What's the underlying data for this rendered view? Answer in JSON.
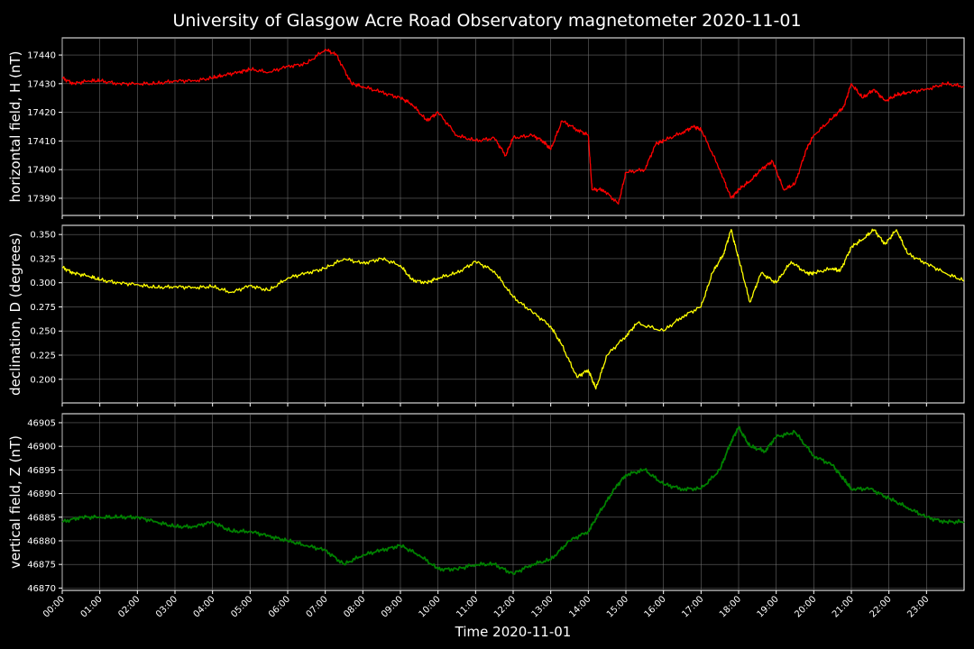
{
  "title": "University of Glasgow Acre Road Observatory magnetometer 2020-11-01",
  "chart_data": [
    {
      "type": "line",
      "ylabel": "horizontal field, H (nT)",
      "color": "#ff0000",
      "ylim": [
        17384,
        17446
      ],
      "yticks": [
        17390,
        17400,
        17410,
        17420,
        17430,
        17440
      ],
      "x": [
        0,
        0.3,
        0.7,
        1.0,
        1.5,
        2.0,
        2.5,
        3.0,
        3.5,
        4.0,
        4.3,
        4.7,
        5.0,
        5.5,
        6.0,
        6.5,
        7.0,
        7.3,
        7.7,
        8.0,
        8.5,
        9.0,
        9.3,
        9.7,
        10.0,
        10.5,
        11.0,
        11.5,
        11.8,
        12.0,
        12.5,
        12.8,
        13.0,
        13.3,
        13.7,
        14.0,
        14.1,
        14.4,
        14.8,
        15.0,
        15.5,
        15.8,
        16.0,
        16.5,
        16.8,
        17.0,
        17.5,
        17.8,
        18.0,
        18.3,
        18.6,
        18.9,
        19.2,
        19.5,
        19.8,
        20.0,
        20.5,
        20.8,
        21.0,
        21.3,
        21.6,
        21.9,
        22.2,
        22.5,
        23.0,
        23.5,
        24.0
      ],
      "y": [
        17432,
        17430,
        17431,
        17431,
        17430,
        17430,
        17430,
        17431,
        17431,
        17432,
        17433,
        17434,
        17435,
        17434,
        17436,
        17437,
        17442,
        17440,
        17430,
        17429,
        17427,
        17425,
        17423,
        17417,
        17420,
        17412,
        17410,
        17411,
        17405,
        17411,
        17412,
        17410,
        17407,
        17417,
        17414,
        17412,
        17393,
        17393,
        17388,
        17399,
        17400,
        17409,
        17410,
        17413,
        17415,
        17414,
        17400,
        17390,
        17393,
        17396,
        17400,
        17403,
        17393,
        17395,
        17407,
        17412,
        17418,
        17422,
        17430,
        17425,
        17428,
        17424,
        17426,
        17427,
        17428,
        17430,
        17429
      ]
    },
    {
      "type": "line",
      "ylabel": "declination, D (degrees)",
      "color": "#ffff00",
      "ylim": [
        0.1755,
        0.3595
      ],
      "yticks": [
        0.2,
        0.225,
        0.25,
        0.275,
        0.3,
        0.325,
        0.35
      ],
      "x": [
        0,
        0.3,
        0.7,
        1.0,
        1.5,
        2.0,
        2.5,
        3.0,
        3.5,
        4.0,
        4.5,
        5.0,
        5.5,
        6.0,
        6.5,
        7.0,
        7.5,
        8.0,
        8.5,
        9.0,
        9.3,
        9.7,
        10.0,
        10.5,
        11.0,
        11.5,
        12.0,
        12.5,
        13.0,
        13.3,
        13.7,
        14.0,
        14.2,
        14.5,
        15.0,
        15.3,
        16.0,
        16.5,
        17.0,
        17.3,
        17.6,
        17.8,
        18.0,
        18.3,
        18.6,
        19.0,
        19.4,
        19.8,
        20.0,
        20.5,
        20.7,
        21.0,
        21.3,
        21.6,
        21.9,
        22.2,
        22.5,
        23.0,
        23.5,
        24.0
      ],
      "y": [
        0.316,
        0.31,
        0.307,
        0.303,
        0.3,
        0.298,
        0.295,
        0.296,
        0.295,
        0.296,
        0.29,
        0.297,
        0.292,
        0.305,
        0.31,
        0.315,
        0.325,
        0.32,
        0.325,
        0.318,
        0.303,
        0.3,
        0.305,
        0.31,
        0.322,
        0.312,
        0.285,
        0.27,
        0.255,
        0.235,
        0.202,
        0.21,
        0.19,
        0.225,
        0.245,
        0.258,
        0.25,
        0.265,
        0.275,
        0.31,
        0.33,
        0.355,
        0.325,
        0.28,
        0.31,
        0.3,
        0.322,
        0.31,
        0.31,
        0.315,
        0.312,
        0.337,
        0.345,
        0.355,
        0.34,
        0.355,
        0.33,
        0.32,
        0.31,
        0.302
      ]
    },
    {
      "type": "line",
      "ylabel": "vertical field, Z (nT)",
      "color": "#008000",
      "ylim": [
        46869.5,
        46906.9
      ],
      "yticks": [
        46870,
        46875,
        46880,
        46885,
        46890,
        46895,
        46900,
        46905
      ],
      "x": [
        0,
        0.5,
        1.0,
        1.5,
        2.0,
        2.5,
        3.0,
        3.5,
        4.0,
        4.5,
        5.0,
        5.5,
        6.0,
        6.5,
        7.0,
        7.5,
        8.0,
        8.5,
        9.0,
        9.5,
        10.0,
        10.5,
        11.0,
        11.5,
        12.0,
        12.5,
        13.0,
        13.5,
        14.0,
        14.3,
        14.7,
        15.0,
        15.5,
        16.0,
        16.5,
        17.0,
        17.5,
        17.8,
        18.0,
        18.3,
        18.7,
        19.0,
        19.5,
        20.0,
        20.5,
        20.8,
        21.0,
        21.5,
        22.0,
        22.5,
        23.0,
        23.5,
        24.0
      ],
      "y": [
        46884,
        46885,
        46885,
        46885,
        46885,
        46884,
        46883,
        46883,
        46884,
        46882,
        46882,
        46881,
        46880,
        46879,
        46878,
        46875,
        46877,
        46878,
        46879,
        46877,
        46874,
        46874,
        46875,
        46875,
        46873,
        46875,
        46876,
        46880,
        46882,
        46886,
        46891,
        46894,
        46895,
        46892,
        46891,
        46891,
        46895,
        46901,
        46904,
        46900,
        46899,
        46902,
        46903,
        46898,
        46896,
        46893,
        46891,
        46891,
        46889,
        46887,
        46885,
        46884,
        46884
      ]
    }
  ],
  "xaxis": {
    "label": "Time 2020-11-01",
    "xlim": [
      0,
      24
    ],
    "ticks": [
      "00:00",
      "01:00",
      "02:00",
      "03:00",
      "04:00",
      "05:00",
      "06:00",
      "07:00",
      "08:00",
      "09:00",
      "10:00",
      "11:00",
      "12:00",
      "13:00",
      "14:00",
      "15:00",
      "16:00",
      "17:00",
      "18:00",
      "19:00",
      "20:00",
      "21:00",
      "22:00",
      "23:00"
    ]
  }
}
